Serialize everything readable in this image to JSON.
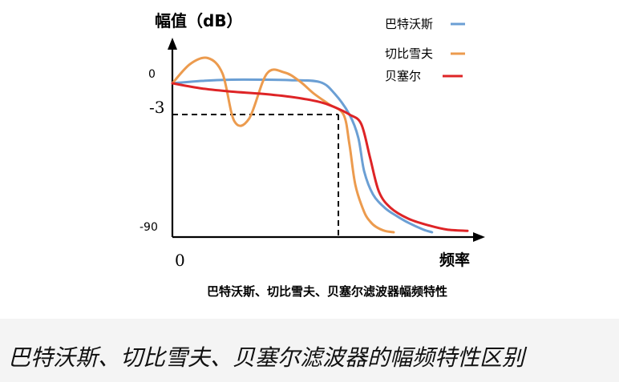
{
  "chart_data": {
    "type": "line",
    "title": "巴特沃斯、切比雪夫、贝塞尔滤波器幅频特性",
    "ylabel": "幅值（dB）",
    "xlabel": "频率",
    "x_ticks": [
      "0"
    ],
    "y_ticks": [
      "0",
      "-3",
      "-90"
    ],
    "y_scale": "schematic",
    "grid": false,
    "legend": "top-right",
    "guides": {
      "cutoff_level_label": "-3"
    },
    "series": [
      {
        "name": "巴特沃斯",
        "color": "#6b9fd4",
        "x": [
          0,
          0.1,
          0.2,
          0.3,
          0.4,
          0.5,
          0.55,
          0.6,
          0.63,
          0.65,
          0.68,
          0.72,
          0.76,
          0.8,
          0.85,
          0.88
        ],
        "y": [
          0,
          1,
          1.5,
          1.5,
          1.3,
          0.5,
          -1,
          -3,
          -20,
          -45,
          -62,
          -72,
          -78,
          -83,
          -88,
          -90
        ]
      },
      {
        "name": "切比雪夫",
        "color": "#ec9b4e",
        "x": [
          0,
          0.06,
          0.12,
          0.17,
          0.21,
          0.26,
          0.32,
          0.38,
          0.43,
          0.48,
          0.53,
          0.58,
          0.6,
          0.62,
          0.65,
          0.67,
          0.69,
          0.72,
          0.75
        ],
        "y": [
          0,
          8,
          10.5,
          4,
          -8,
          -6,
          4,
          4.5,
          1,
          -1,
          -2,
          -3,
          -25,
          -55,
          -75,
          -82,
          -86,
          -89,
          -90
        ]
      },
      {
        "name": "贝塞尔",
        "color": "#de2426",
        "x": [
          0,
          0.1,
          0.2,
          0.3,
          0.4,
          0.5,
          0.55,
          0.6,
          0.64,
          0.67,
          0.7,
          0.74,
          0.8,
          0.87,
          0.93,
          1.0
        ],
        "y": [
          0,
          -0.5,
          -0.8,
          -1,
          -1.3,
          -1.8,
          -2.3,
          -3,
          -10,
          -35,
          -60,
          -72,
          -80,
          -85,
          -88,
          -89
        ]
      }
    ]
  },
  "caption": "巴特沃斯、切比雪夫、贝塞尔滤波器的幅频特性区别"
}
